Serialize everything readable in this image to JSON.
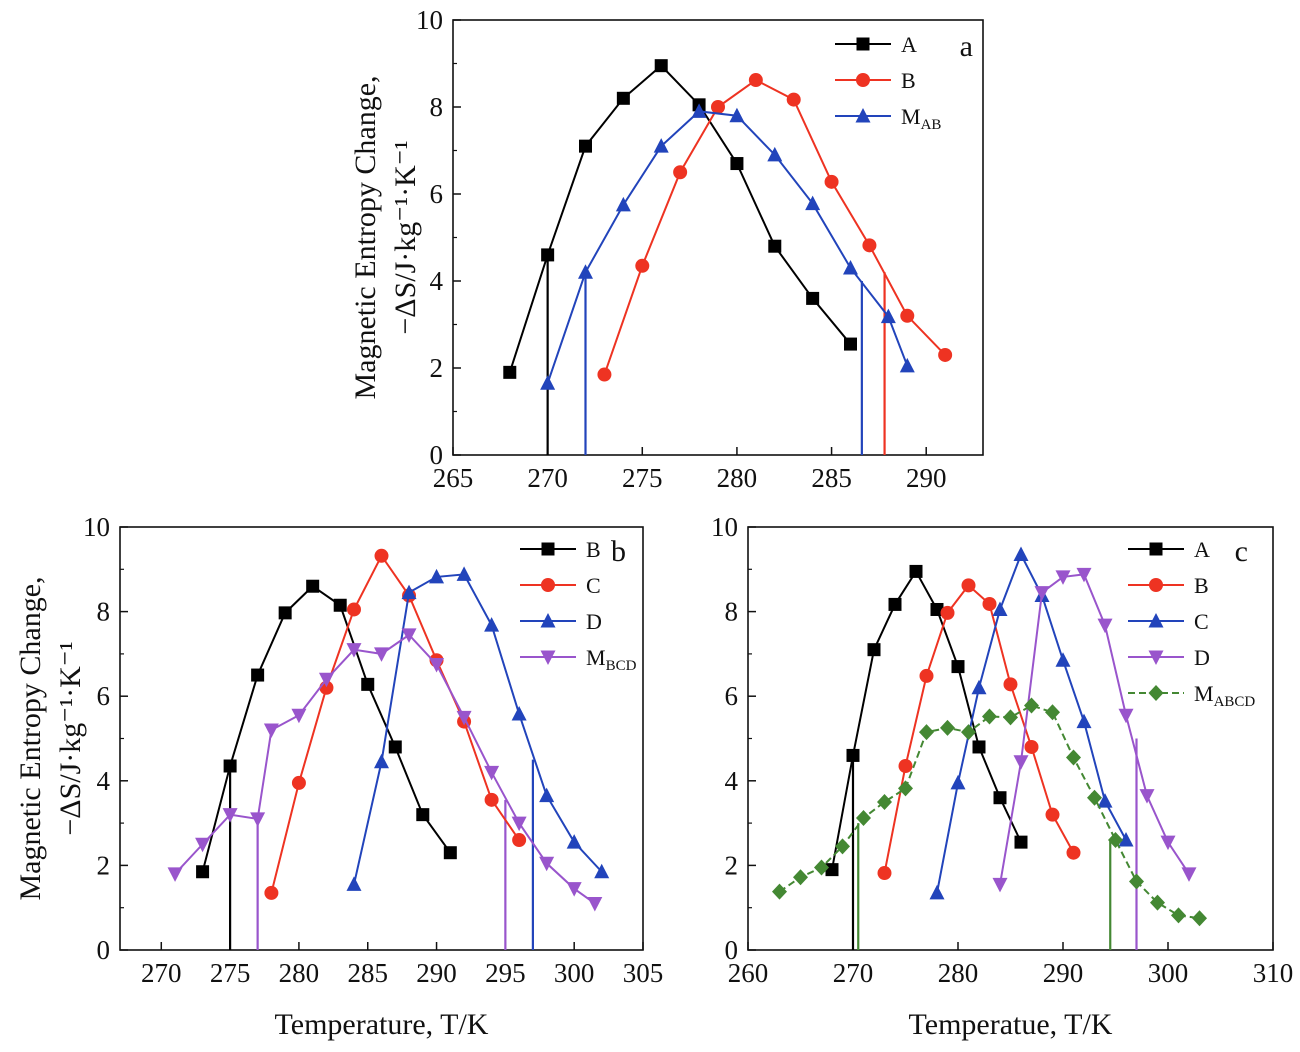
{
  "chart_data": [
    {
      "panel": "a",
      "type": "line",
      "xlabel": "",
      "ylabel": [
        "Magnetic Entropy Change,",
        "−ΔS/J·kg⁻¹·K⁻¹"
      ],
      "xlim": [
        265,
        293
      ],
      "ylim": [
        0,
        10
      ],
      "xticks": [
        265,
        270,
        275,
        280,
        285,
        290
      ],
      "yticks": [
        0,
        2,
        4,
        6,
        8,
        10
      ],
      "legend_position": "top-right",
      "series": [
        {
          "name": "A",
          "sub": "",
          "color": "#000000",
          "marker": "square",
          "x": [
            268,
            270,
            272,
            274,
            276,
            278,
            280,
            282,
            284,
            286
          ],
          "y": [
            1.9,
            4.6,
            7.1,
            8.2,
            8.95,
            8.05,
            6.7,
            4.8,
            3.6,
            2.55
          ]
        },
        {
          "name": "B",
          "sub": "",
          "color": "#ee3322",
          "marker": "circle",
          "x": [
            273,
            275,
            277,
            279,
            281,
            283,
            285,
            287,
            289,
            291
          ],
          "y": [
            1.85,
            4.35,
            6.5,
            8.0,
            8.62,
            8.17,
            6.28,
            4.82,
            3.2,
            2.3
          ]
        },
        {
          "name": "M",
          "sub": "AB",
          "color": "#2244bb",
          "marker": "triangle-up",
          "x": [
            270,
            272,
            274,
            276,
            278,
            280,
            282,
            284,
            286,
            288,
            289
          ],
          "y": [
            1.65,
            4.2,
            5.75,
            7.1,
            7.9,
            7.8,
            6.9,
            5.78,
            4.3,
            3.18,
            2.05
          ]
        }
      ],
      "vlines": [
        {
          "x": 270,
          "y": 4.6,
          "color": "#000000"
        },
        {
          "x": 272,
          "y": 4.2,
          "color": "#2244bb"
        },
        {
          "x": 286.6,
          "y": 4.0,
          "color": "#2244bb"
        },
        {
          "x": 287.8,
          "y": 4.2,
          "color": "#ee3322"
        }
      ]
    },
    {
      "panel": "b",
      "type": "line",
      "xlabel": "Temperature, T/K",
      "ylabel": [
        "Magnetic Entropy Change,",
        "−ΔS/J·kg⁻¹·K⁻¹"
      ],
      "xlim": [
        267,
        305
      ],
      "ylim": [
        0,
        10
      ],
      "xticks": [
        270,
        275,
        280,
        285,
        290,
        295,
        300,
        305
      ],
      "yticks": [
        0,
        2,
        4,
        6,
        8,
        10
      ],
      "legend_position": "top-right",
      "series": [
        {
          "name": "B",
          "sub": "",
          "color": "#000000",
          "marker": "square",
          "x": [
            273,
            275,
            277,
            279,
            281,
            283,
            285,
            287,
            289,
            291
          ],
          "y": [
            1.85,
            4.35,
            6.5,
            7.97,
            8.6,
            8.15,
            6.28,
            4.8,
            3.2,
            2.3
          ]
        },
        {
          "name": "C",
          "sub": "",
          "color": "#ee3322",
          "marker": "circle",
          "x": [
            278,
            280,
            282,
            284,
            286,
            288,
            290,
            292,
            294,
            296
          ],
          "y": [
            1.35,
            3.95,
            6.2,
            8.05,
            9.32,
            8.38,
            6.85,
            5.4,
            3.55,
            2.6
          ]
        },
        {
          "name": "D",
          "sub": "",
          "color": "#2244bb",
          "marker": "triangle-up",
          "x": [
            284,
            286,
            288,
            290,
            292,
            294,
            296,
            298,
            300,
            302
          ],
          "y": [
            1.55,
            4.45,
            8.45,
            8.82,
            8.88,
            7.68,
            5.58,
            3.65,
            2.55,
            1.85
          ]
        },
        {
          "name": "M",
          "sub": "BCD",
          "color": "#9955cc",
          "marker": "triangle-down",
          "x": [
            271,
            273,
            275,
            277,
            278,
            280,
            282,
            284,
            286,
            288,
            290,
            292,
            294,
            296,
            298,
            300,
            301.5
          ],
          "y": [
            1.8,
            2.5,
            3.2,
            3.1,
            5.2,
            5.55,
            6.4,
            7.1,
            7.0,
            7.45,
            6.75,
            5.5,
            4.2,
            3.0,
            2.05,
            1.45,
            1.1
          ]
        }
      ],
      "vlines": [
        {
          "x": 275,
          "y": 4.2,
          "color": "#000000"
        },
        {
          "x": 277,
          "y": 3.1,
          "color": "#9955cc"
        },
        {
          "x": 295,
          "y": 3.55,
          "color": "#9955cc"
        },
        {
          "x": 297,
          "y": 4.5,
          "color": "#2244bb"
        }
      ]
    },
    {
      "panel": "c",
      "type": "line",
      "xlabel": "Temperatue, T/K",
      "ylabel": [],
      "xlim": [
        260,
        310
      ],
      "ylim": [
        0,
        10
      ],
      "xticks": [
        260,
        270,
        280,
        290,
        300,
        310
      ],
      "yticks": [
        0,
        2,
        4,
        6,
        8,
        10
      ],
      "legend_position": "top-right",
      "series": [
        {
          "name": "A",
          "sub": "",
          "color": "#000000",
          "marker": "square",
          "x": [
            268,
            270,
            272,
            274,
            276,
            278,
            280,
            282,
            284,
            286
          ],
          "y": [
            1.9,
            4.6,
            7.1,
            8.17,
            8.95,
            8.05,
            6.7,
            4.8,
            3.6,
            2.55
          ]
        },
        {
          "name": "B",
          "sub": "",
          "color": "#ee3322",
          "marker": "circle",
          "x": [
            273,
            275,
            277,
            279,
            281,
            283,
            285,
            287,
            289,
            291
          ],
          "y": [
            1.82,
            4.35,
            6.48,
            7.97,
            8.62,
            8.18,
            6.28,
            4.8,
            3.2,
            2.3
          ]
        },
        {
          "name": "C",
          "sub": "",
          "color": "#2244bb",
          "marker": "triangle-up",
          "x": [
            278,
            280,
            282,
            284,
            286,
            288,
            290,
            292,
            294,
            296
          ],
          "y": [
            1.35,
            3.95,
            6.2,
            8.05,
            9.35,
            8.38,
            6.85,
            5.4,
            3.52,
            2.6
          ]
        },
        {
          "name": "D",
          "sub": "",
          "color": "#9955cc",
          "marker": "triangle-down",
          "x": [
            284,
            286,
            288,
            290,
            292,
            294,
            296,
            298,
            300,
            302
          ],
          "y": [
            1.55,
            4.45,
            8.45,
            8.82,
            8.88,
            7.68,
            5.55,
            3.65,
            2.55,
            1.8
          ]
        },
        {
          "name": "M",
          "sub": "ABCD",
          "color": "#448833",
          "marker": "diamond",
          "x": [
            263,
            265,
            267,
            269,
            271,
            273,
            275,
            277,
            279,
            281,
            283,
            285,
            287,
            289,
            291,
            293,
            295,
            297,
            299,
            301,
            303
          ],
          "y": [
            1.38,
            1.72,
            1.95,
            2.45,
            3.12,
            3.5,
            3.82,
            5.15,
            5.25,
            5.15,
            5.52,
            5.5,
            5.78,
            5.62,
            4.55,
            3.6,
            2.6,
            1.62,
            1.12,
            0.82,
            0.75
          ]
        }
      ],
      "vlines": [
        {
          "x": 270,
          "y": 4.6,
          "color": "#000000"
        },
        {
          "x": 270.5,
          "y": 3.0,
          "color": "#448833"
        },
        {
          "x": 294.5,
          "y": 2.6,
          "color": "#448833"
        },
        {
          "x": 297,
          "y": 5.0,
          "color": "#9955cc"
        }
      ]
    }
  ]
}
